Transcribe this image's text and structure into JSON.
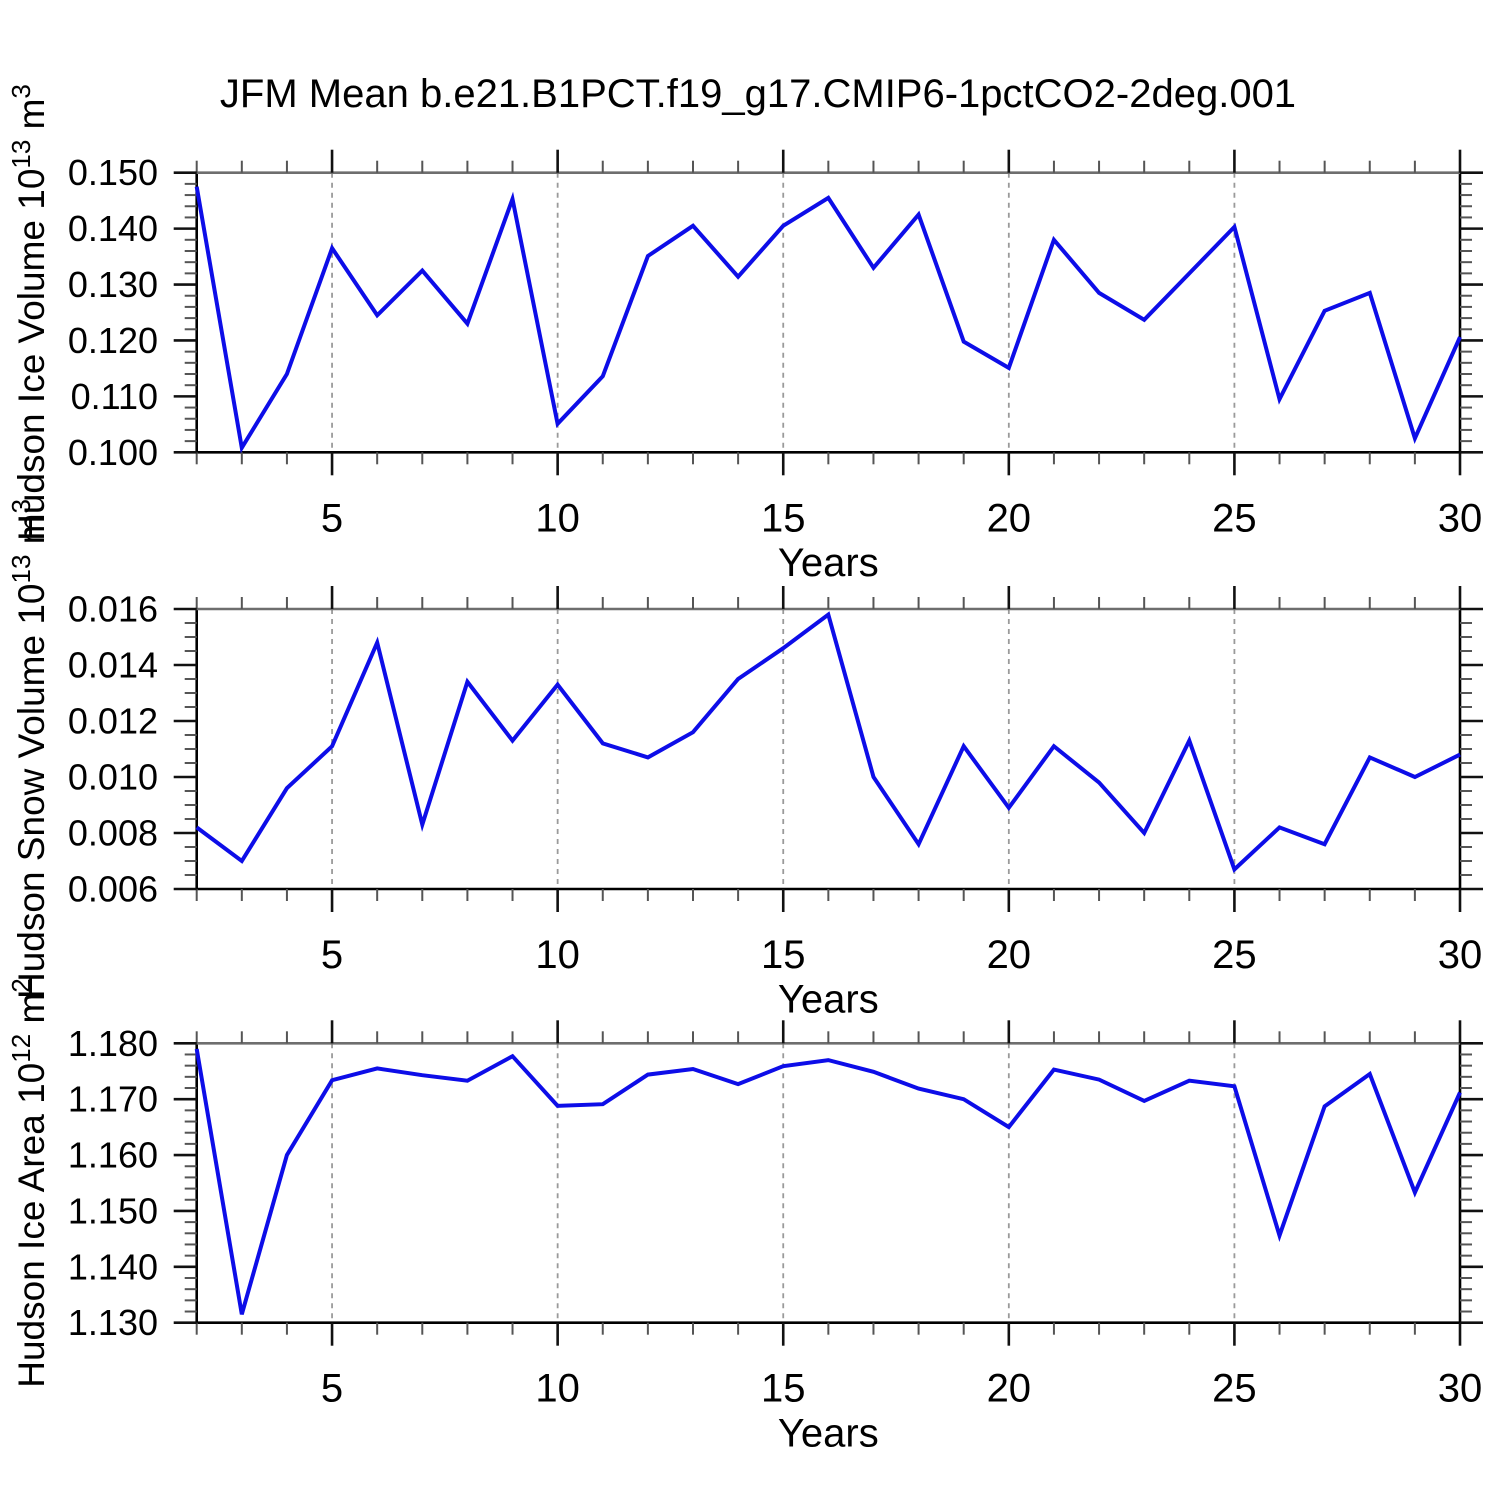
{
  "title": "JFM Mean b.e21.B1PCT.f19_g17.CMIP6-1pctCO2-2deg.001",
  "colors": {
    "line": "#0d0de8",
    "grid_dashed": "#9a9a9a",
    "frame": "#000000",
    "frame_top": "#6e6e6e",
    "tick_major": "#111111",
    "tick_minor": "#555555",
    "text": "#000000",
    "background": "#ffffff"
  },
  "chart_data": [
    {
      "type": "line",
      "name": "hudson-ice-volume",
      "ylabel_plain": "Hudson Ice Volume 10^13 m^3",
      "ylabel_parts": [
        {
          "text": "Hudson Ice Volume 10",
          "sup": false
        },
        {
          "text": "13",
          "sup": true
        },
        {
          "text": " m",
          "sup": false
        },
        {
          "text": "3",
          "sup": true
        }
      ],
      "xlabel": "Years",
      "x": [
        2,
        3,
        4,
        5,
        6,
        7,
        8,
        9,
        10,
        11,
        12,
        13,
        14,
        15,
        16,
        17,
        18,
        19,
        20,
        21,
        22,
        23,
        24,
        25,
        26,
        27,
        28,
        29,
        30
      ],
      "values": [
        0.1475,
        0.1008,
        0.114,
        0.1365,
        0.1245,
        0.1325,
        0.123,
        0.1453,
        0.1051,
        0.1136,
        0.1351,
        0.1405,
        0.1314,
        0.1405,
        0.1455,
        0.133,
        0.1425,
        0.1198,
        0.1151,
        0.138,
        0.1285,
        0.1237,
        0.132,
        0.1403,
        0.1095,
        0.1253,
        0.1285,
        0.1025,
        0.1206
      ],
      "xlim": [
        2,
        30
      ],
      "ylim": [
        0.1,
        0.15
      ],
      "xticks_labeled": [
        5,
        10,
        15,
        20,
        25,
        30
      ],
      "xtick_labels": [
        "5",
        "10",
        "15",
        "20",
        "25",
        "30"
      ],
      "xminor_step": 1,
      "yticks": [
        {
          "v": 0.15,
          "label": "0.150"
        },
        {
          "v": 0.14,
          "label": "0.140"
        },
        {
          "v": 0.13,
          "label": "0.130"
        },
        {
          "v": 0.12,
          "label": "0.120"
        },
        {
          "v": 0.11,
          "label": "0.110"
        },
        {
          "v": 0.1,
          "label": "0.100"
        }
      ],
      "yminor_step": 0.002,
      "dashed_gridlines_x": [
        5,
        10,
        15,
        20,
        25
      ],
      "grid": "vertical-dashed-only",
      "legend": "none"
    },
    {
      "type": "line",
      "name": "hudson-snow-volume",
      "ylabel_plain": "Hudson Snow Volume 10^13 m^3",
      "ylabel_parts": [
        {
          "text": "Hudson Snow Volume 10",
          "sup": false
        },
        {
          "text": "13",
          "sup": true
        },
        {
          "text": " m",
          "sup": false
        },
        {
          "text": "3",
          "sup": true
        }
      ],
      "xlabel": "Years",
      "x": [
        2,
        3,
        4,
        5,
        6,
        7,
        8,
        9,
        10,
        11,
        12,
        13,
        14,
        15,
        16,
        17,
        18,
        19,
        20,
        21,
        22,
        23,
        24,
        25,
        26,
        27,
        28,
        29,
        30
      ],
      "values": [
        0.0082,
        0.007,
        0.0096,
        0.0111,
        0.0148,
        0.0083,
        0.0134,
        0.0113,
        0.0133,
        0.0112,
        0.0107,
        0.0116,
        0.0135,
        0.0146,
        0.0158,
        0.01,
        0.0076,
        0.0111,
        0.0089,
        0.0111,
        0.0098,
        0.008,
        0.0113,
        0.0067,
        0.0082,
        0.0076,
        0.0107,
        0.01,
        0.0108
      ],
      "xlim": [
        2,
        30
      ],
      "ylim": [
        0.006,
        0.016
      ],
      "xticks_labeled": [
        5,
        10,
        15,
        20,
        25,
        30
      ],
      "xtick_labels": [
        "5",
        "10",
        "15",
        "20",
        "25",
        "30"
      ],
      "xminor_step": 1,
      "yticks": [
        {
          "v": 0.016,
          "label": "0.016"
        },
        {
          "v": 0.014,
          "label": "0.014"
        },
        {
          "v": 0.012,
          "label": "0.012"
        },
        {
          "v": 0.01,
          "label": "0.010"
        },
        {
          "v": 0.008,
          "label": "0.008"
        },
        {
          "v": 0.006,
          "label": "0.006"
        }
      ],
      "yminor_step": 0.0005,
      "dashed_gridlines_x": [
        5,
        10,
        15,
        20,
        25
      ],
      "grid": "vertical-dashed-only",
      "legend": "none"
    },
    {
      "type": "line",
      "name": "hudson-ice-area",
      "ylabel_plain": "Hudson Ice Area 10^12 m^2",
      "ylabel_parts": [
        {
          "text": "Hudson Ice Area 10",
          "sup": false
        },
        {
          "text": "12",
          "sup": true
        },
        {
          "text": " m",
          "sup": false
        },
        {
          "text": "2",
          "sup": true
        }
      ],
      "xlabel": "Years",
      "x": [
        2,
        3,
        4,
        5,
        6,
        7,
        8,
        9,
        10,
        11,
        12,
        13,
        14,
        15,
        16,
        17,
        18,
        19,
        20,
        21,
        22,
        23,
        24,
        25,
        26,
        27,
        28,
        29,
        30
      ],
      "values": [
        1.179,
        1.1315,
        1.16,
        1.1734,
        1.1755,
        1.1743,
        1.1733,
        1.1777,
        1.1688,
        1.1691,
        1.1744,
        1.1754,
        1.1727,
        1.1759,
        1.177,
        1.1749,
        1.1719,
        1.17,
        1.165,
        1.1753,
        1.1735,
        1.1697,
        1.1733,
        1.1723,
        1.1456,
        1.1687,
        1.1745,
        1.1533,
        1.1712
      ],
      "xlim": [
        2,
        30
      ],
      "ylim": [
        1.13,
        1.18
      ],
      "xticks_labeled": [
        5,
        10,
        15,
        20,
        25,
        30
      ],
      "xtick_labels": [
        "5",
        "10",
        "15",
        "20",
        "25",
        "30"
      ],
      "xminor_step": 1,
      "yticks": [
        {
          "v": 1.18,
          "label": "1.180"
        },
        {
          "v": 1.17,
          "label": "1.170"
        },
        {
          "v": 1.16,
          "label": "1.160"
        },
        {
          "v": 1.15,
          "label": "1.150"
        },
        {
          "v": 1.14,
          "label": "1.140"
        },
        {
          "v": 1.13,
          "label": "1.130"
        }
      ],
      "yminor_step": 0.002,
      "dashed_gridlines_x": [
        5,
        10,
        15,
        20,
        25
      ],
      "grid": "vertical-dashed-only",
      "legend": "none"
    }
  ]
}
